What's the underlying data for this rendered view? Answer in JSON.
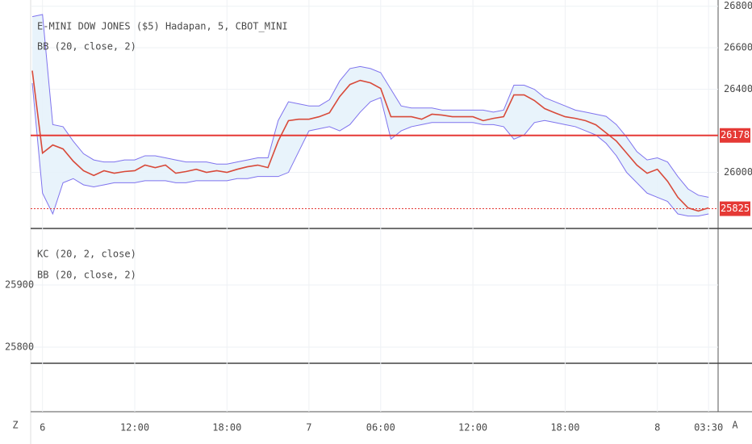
{
  "chart_data": {
    "type": "line",
    "title": "E-MINI DOW JONES ($5) Hadapan, 5, CBOT_MINI",
    "indicator": "BB (20, close, 2)",
    "categories": [
      null,
      "6",
      null,
      null,
      null,
      null,
      null,
      null,
      null,
      null,
      "12:00",
      null,
      null,
      null,
      null,
      null,
      null,
      null,
      null,
      "18:00",
      null,
      null,
      null,
      null,
      null,
      null,
      null,
      "7",
      null,
      null,
      null,
      null,
      null,
      null,
      "06:00",
      null,
      null,
      null,
      null,
      null,
      null,
      null,
      null,
      "12:00",
      null,
      null,
      null,
      null,
      null,
      null,
      null,
      null,
      "18:00",
      null,
      null,
      null,
      null,
      null,
      null,
      null,
      null,
      "8",
      null,
      null,
      null,
      null,
      "03:30"
    ],
    "values": [
      26490,
      26093,
      26132,
      26113,
      26054,
      26008,
      25985,
      26008,
      25996,
      26004,
      26008,
      26035,
      26023,
      26035,
      25996,
      26004,
      26015,
      26000,
      26008,
      26000,
      26015,
      26027,
      26035,
      26023,
      26151,
      26249,
      26256,
      26256,
      26268,
      26287,
      26365,
      26423,
      26443,
      26431,
      26404,
      26268,
      26268,
      26268,
      26256,
      26280,
      26276,
      26268,
      26268,
      26268,
      26249,
      26260,
      26268,
      26373,
      26373,
      26346,
      26307,
      26287,
      26268,
      26260,
      26249,
      26229,
      26190,
      26151,
      26093,
      26035,
      25996,
      26015,
      25957,
      25880,
      25829,
      25814,
      25829
    ],
    "band_upper": [
      26750,
      26760,
      26230,
      26220,
      26150,
      26090,
      26060,
      26050,
      26050,
      26060,
      26060,
      26080,
      26080,
      26070,
      26060,
      26050,
      26050,
      26050,
      26040,
      26040,
      26050,
      26060,
      26070,
      26070,
      26250,
      26340,
      26330,
      26320,
      26320,
      26350,
      26440,
      26500,
      26510,
      26500,
      26480,
      26400,
      26320,
      26310,
      26310,
      26310,
      26300,
      26300,
      26300,
      26300,
      26300,
      26290,
      26300,
      26420,
      26420,
      26400,
      26360,
      26340,
      26320,
      26300,
      26290,
      26280,
      26270,
      26230,
      26170,
      26100,
      26060,
      26070,
      26050,
      25980,
      25920,
      25890,
      25880
    ],
    "band_lower": [
      26430,
      25900,
      25800,
      25950,
      25970,
      25940,
      25930,
      25940,
      25950,
      25950,
      25950,
      25960,
      25960,
      25960,
      25950,
      25950,
      25960,
      25960,
      25960,
      25960,
      25970,
      25970,
      25980,
      25980,
      25980,
      26000,
      26100,
      26200,
      26210,
      26220,
      26200,
      26230,
      26290,
      26340,
      26360,
      26160,
      26200,
      26220,
      26230,
      26240,
      26240,
      26240,
      26240,
      26240,
      26230,
      26230,
      26220,
      26160,
      26180,
      26240,
      26250,
      26240,
      26230,
      26220,
      26200,
      26180,
      26140,
      26080,
      26000,
      25950,
      25900,
      25880,
      25860,
      25800,
      25790,
      25790,
      25800
    ],
    "color": "#d84a3a",
    "band_color": "#7f73ee",
    "band_fill": "#e6f2fb",
    "ylim": [
      25730,
      26830
    ],
    "yticks": [
      26000,
      26400,
      26600,
      26800
    ],
    "price_lines": [
      {
        "value": 26178,
        "style": "solid"
      },
      {
        "value": 25825,
        "style": "dotted"
      }
    ],
    "lower_pane": {
      "labels": [
        "KC (20, 2, close)",
        "BB (20, close, 2)"
      ],
      "ylim": [
        25774,
        25991
      ],
      "yticks": [
        25800,
        25900
      ]
    }
  },
  "toolbar": {
    "left": "Z",
    "right": "A"
  }
}
